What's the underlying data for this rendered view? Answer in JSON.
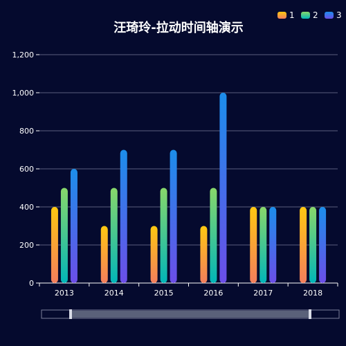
{
  "chart_data": {
    "type": "bar",
    "title": "汪琦玲-拉动时间轴演示",
    "categories": [
      "2013",
      "2014",
      "2015",
      "2016",
      "2017",
      "2018"
    ],
    "series": [
      {
        "name": "1",
        "values": [
          400,
          300,
          300,
          300,
          400,
          400
        ]
      },
      {
        "name": "2",
        "values": [
          500,
          500,
          500,
          500,
          400,
          400
        ]
      },
      {
        "name": "3",
        "values": [
          600,
          700,
          700,
          1000,
          400,
          400
        ]
      }
    ],
    "yticks": [
      "0",
      "200",
      "400",
      "600",
      "800",
      "1,000",
      "1,200"
    ],
    "ylim": [
      0,
      1200
    ],
    "grid": true,
    "legend_position": "top-right",
    "colors": {
      "background": "#050a2e",
      "grid": "#5b5f7e",
      "axis": "#ffffff",
      "text": "#ffffff",
      "series": [
        {
          "top": "#fec811",
          "bottom": "#f47e5c"
        },
        {
          "top": "#88d76a",
          "bottom": "#02b5b8"
        },
        {
          "top": "#1c8eea",
          "bottom": "#6c4ee8"
        }
      ],
      "slider_fill": "#5a6179",
      "slider_border": "#7b7f99",
      "slider_handle": "#d8dbe6"
    },
    "data_zoom": {
      "start": 0.0,
      "end": 1.0
    }
  }
}
